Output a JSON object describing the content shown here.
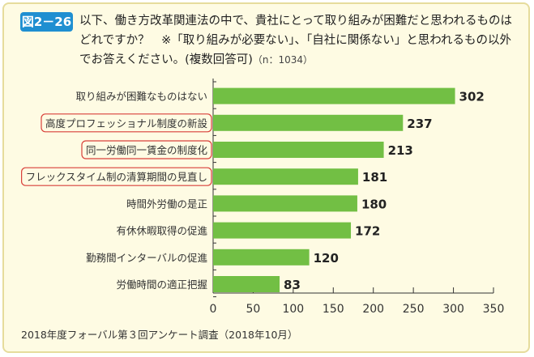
{
  "figure_label": "図2－26",
  "title_lines": [
    "以下、働き方改革関連法の中で、貴社にとって取り組みが困難だと思われるものは",
    "どれですか？　※「取り組みが必要ない」、「自社に関係ない」と思われるもの以外",
    "でお答えください。(複数回答可)"
  ],
  "sample_size": "（n：1034）",
  "source": "2018年度フォーバル第３回アンケート調査（2018年10月）",
  "colors": {
    "bar": "#72bf44",
    "highlight_border": "#d9403a",
    "badge": "#1f8fd1",
    "panel": "#fefbe3"
  },
  "chart_data": {
    "type": "bar",
    "orientation": "horizontal",
    "categories": [
      "取り組みが困難なものはない",
      "高度プロフェッショナル制度の新設",
      "同一労働同一賃金の制度化",
      "フレックスタイム制の清算期間の見直し",
      "時間外労働の是正",
      "有休休暇取得の促進",
      "勤務間インターバルの促進",
      "労働時間の適正把握"
    ],
    "values": [
      302,
      237,
      213,
      181,
      180,
      172,
      120,
      83
    ],
    "highlighted": [
      false,
      true,
      true,
      true,
      false,
      false,
      false,
      false
    ],
    "xlim": [
      0,
      350
    ],
    "xticks": [
      0,
      50,
      100,
      150,
      200,
      250,
      300,
      350
    ],
    "grid": false
  }
}
